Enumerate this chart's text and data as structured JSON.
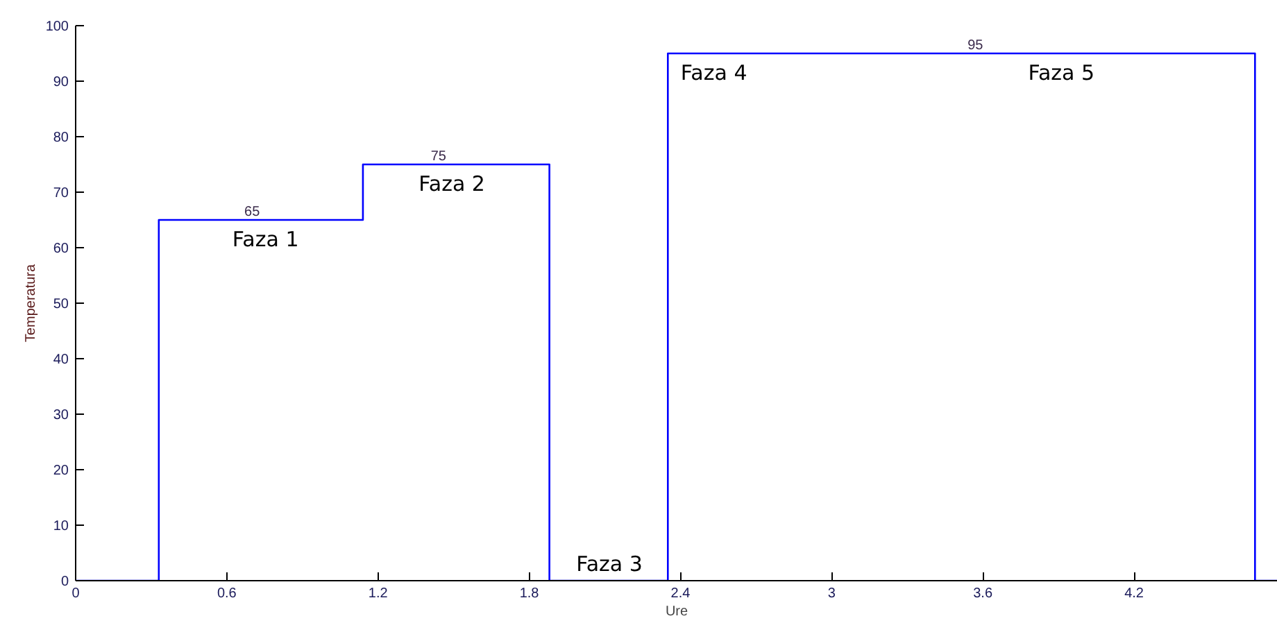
{
  "chart_data": {
    "type": "step",
    "xlabel": "Ure",
    "ylabel": "Temperatura",
    "x": [
      0,
      0.33,
      0.7,
      1.14,
      1.44,
      1.88,
      2.35,
      3.57,
      4.68,
      4.77
    ],
    "series": [
      {
        "color": "#0000ff",
        "values": [
          0,
          65,
          65,
          75,
          75,
          0,
          95,
          95,
          0,
          0
        ],
        "value_labels": [
          null,
          null,
          "65",
          null,
          "75",
          null,
          null,
          "95",
          null,
          null
        ]
      }
    ],
    "xlim": [
      0,
      4.77
    ],
    "ylim": [
      0,
      100
    ],
    "xticks": [
      0,
      0.6,
      1.2,
      1.8,
      2.4,
      3,
      3.6,
      4.2
    ],
    "yticks": [
      0,
      10,
      20,
      30,
      40,
      50,
      60,
      70,
      80,
      90,
      100
    ],
    "grid": false,
    "annotations": [
      "Faza 1",
      "Faza 2",
      "Faza 3",
      "Faza 4",
      "Faza 5"
    ]
  }
}
